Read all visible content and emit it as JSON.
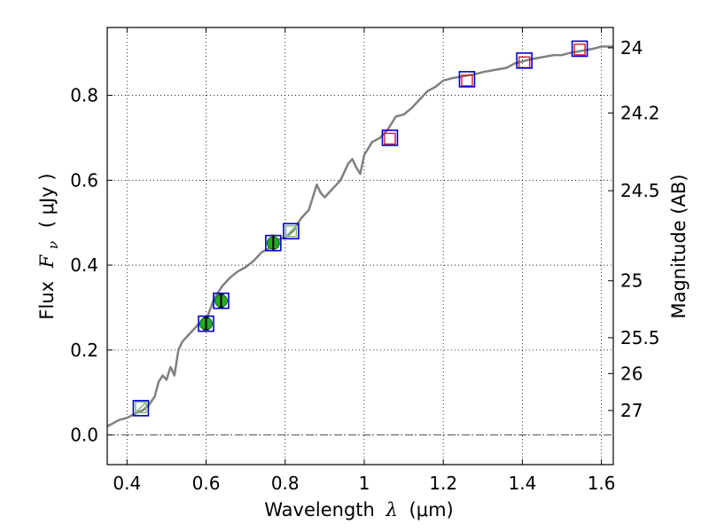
{
  "chart_data": {
    "type": "scatter",
    "xlabel": "Wavelength",
    "xlabel_symbol": "λ",
    "xlabel_unit": "(μm)",
    "ylabel": "Flux",
    "ylabel_symbol": "F",
    "ylabel_subscript": "ν",
    "ylabel_unit": "( μJy )",
    "y2label": "Magnitude (AB)",
    "xlim": [
      0.35,
      1.63
    ],
    "ylim": [
      -0.07,
      0.96
    ],
    "grid": true,
    "x_ticks": [
      {
        "value": 0.4,
        "label": "0.4"
      },
      {
        "value": 0.6,
        "label": "0.6"
      },
      {
        "value": 0.8,
        "label": "0.8"
      },
      {
        "value": 1.0,
        "label": "1"
      },
      {
        "value": 1.2,
        "label": "1.2"
      },
      {
        "value": 1.4,
        "label": "1.4"
      },
      {
        "value": 1.6,
        "label": "1.6"
      }
    ],
    "y_ticks": [
      {
        "value": 0.0,
        "label": "0.0"
      },
      {
        "value": 0.2,
        "label": "0.2"
      },
      {
        "value": 0.4,
        "label": "0.4"
      },
      {
        "value": 0.6,
        "label": "0.6"
      },
      {
        "value": 0.8,
        "label": "0.8"
      }
    ],
    "y2_ticks": [
      {
        "value": 24,
        "label": "24"
      },
      {
        "value": 24.2,
        "label": "24.2"
      },
      {
        "value": 24.5,
        "label": "24.5"
      },
      {
        "value": 25,
        "label": "25"
      },
      {
        "value": 25.5,
        "label": "25.5"
      },
      {
        "value": 26,
        "label": "26"
      },
      {
        "value": 27,
        "label": "27"
      }
    ],
    "colors": {
      "model_line": "#808080",
      "model_box": "#0000cc",
      "detection": "#22aa22",
      "photometry_marker": "#88bb88",
      "upper_limit_marker": "#cc2222",
      "zero_line": "#555555"
    },
    "model_spectrum": {
      "x": [
        0.35,
        0.38,
        0.4,
        0.42,
        0.44,
        0.455,
        0.47,
        0.48,
        0.49,
        0.5,
        0.51,
        0.52,
        0.53,
        0.54,
        0.56,
        0.58,
        0.6,
        0.62,
        0.64,
        0.66,
        0.68,
        0.7,
        0.72,
        0.74,
        0.76,
        0.78,
        0.8,
        0.82,
        0.84,
        0.86,
        0.87,
        0.88,
        0.89,
        0.9,
        0.92,
        0.94,
        0.96,
        0.97,
        0.98,
        0.99,
        1.0,
        1.02,
        1.04,
        1.06,
        1.08,
        1.1,
        1.12,
        1.14,
        1.16,
        1.18,
        1.2,
        1.22,
        1.25,
        1.28,
        1.3,
        1.33,
        1.36,
        1.38,
        1.4,
        1.42,
        1.45,
        1.48,
        1.5,
        1.52,
        1.55,
        1.58,
        1.6,
        1.63
      ],
      "y": [
        0.02,
        0.035,
        0.04,
        0.05,
        0.058,
        0.07,
        0.09,
        0.125,
        0.14,
        0.13,
        0.16,
        0.14,
        0.2,
        0.22,
        0.24,
        0.26,
        0.27,
        0.32,
        0.35,
        0.37,
        0.385,
        0.395,
        0.41,
        0.43,
        0.44,
        0.46,
        0.465,
        0.48,
        0.51,
        0.53,
        0.56,
        0.59,
        0.57,
        0.56,
        0.58,
        0.6,
        0.64,
        0.65,
        0.63,
        0.615,
        0.66,
        0.69,
        0.7,
        0.72,
        0.75,
        0.755,
        0.77,
        0.79,
        0.81,
        0.82,
        0.835,
        0.84,
        0.845,
        0.85,
        0.855,
        0.86,
        0.865,
        0.875,
        0.88,
        0.885,
        0.89,
        0.895,
        0.895,
        0.9,
        0.905,
        0.91,
        0.915,
        0.915
      ]
    },
    "model_photometry": [
      {
        "x": 0.435,
        "y": 0.063
      },
      {
        "x": 0.6,
        "y": 0.262
      },
      {
        "x": 0.638,
        "y": 0.316
      },
      {
        "x": 0.77,
        "y": 0.452
      },
      {
        "x": 0.815,
        "y": 0.48
      },
      {
        "x": 1.065,
        "y": 0.7
      },
      {
        "x": 1.26,
        "y": 0.838
      },
      {
        "x": 1.405,
        "y": 0.882
      },
      {
        "x": 1.545,
        "y": 0.91
      }
    ],
    "detections": [
      {
        "x": 0.6,
        "y": 0.262,
        "yerr": 0.014
      },
      {
        "x": 0.638,
        "y": 0.316,
        "yerr": 0.016
      },
      {
        "x": 0.77,
        "y": 0.452,
        "yerr": 0.018
      }
    ],
    "filter_markers": [
      {
        "x": 0.435,
        "y": 0.065,
        "kind": "photometry"
      },
      {
        "x": 0.815,
        "y": 0.48,
        "kind": "photometry"
      },
      {
        "x": 1.065,
        "y": 0.698,
        "kind": "upper_limit"
      },
      {
        "x": 1.26,
        "y": 0.835,
        "kind": "upper_limit"
      },
      {
        "x": 1.405,
        "y": 0.878,
        "kind": "upper_limit"
      },
      {
        "x": 1.545,
        "y": 0.908,
        "kind": "upper_limit"
      }
    ]
  }
}
